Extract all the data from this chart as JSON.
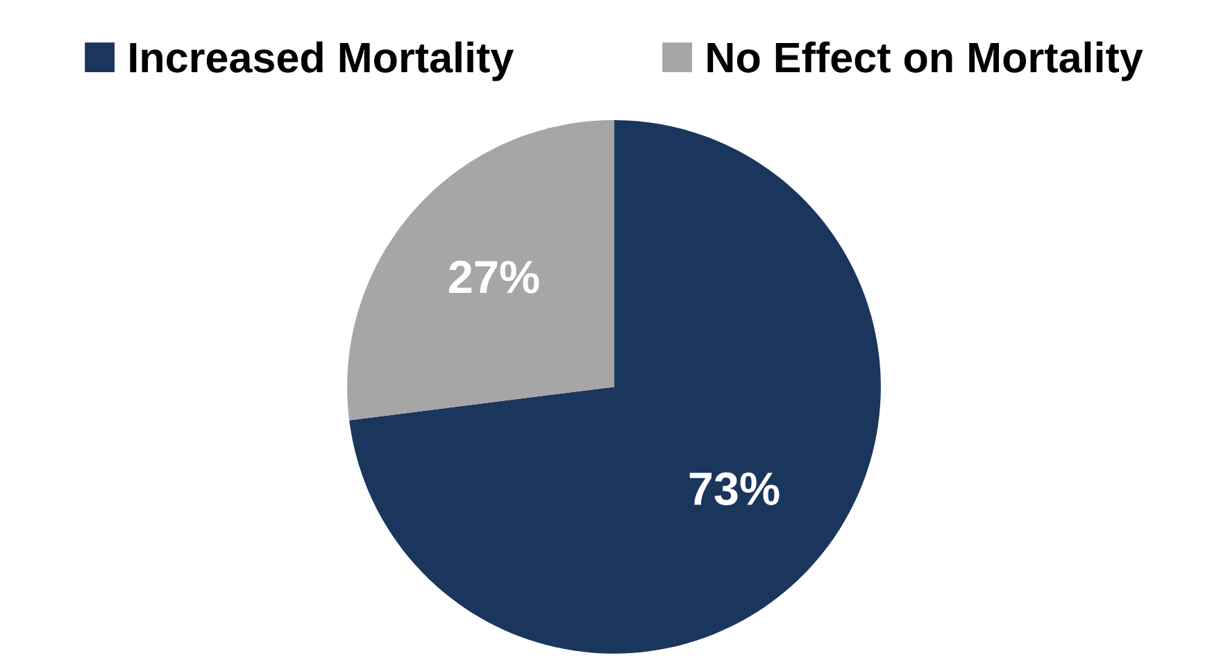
{
  "chart_data": {
    "type": "pie",
    "categories": [
      "Increased Mortality",
      "No Effect on Mortality"
    ],
    "values": [
      73,
      27
    ],
    "colors": [
      "#1b365d",
      "#a6a6a6"
    ],
    "value_labels": [
      "73%",
      "27%"
    ],
    "legend": "top"
  }
}
